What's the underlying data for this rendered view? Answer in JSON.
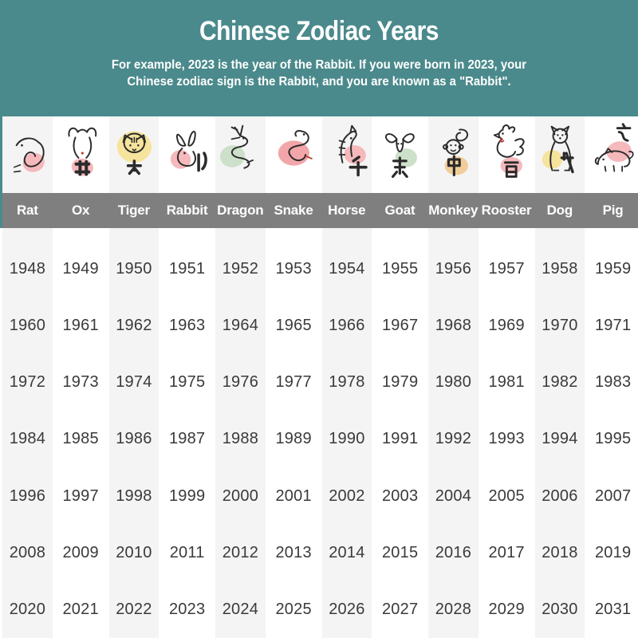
{
  "header": {
    "title": "Chinese Zodiac Years",
    "subtitle_lines": [
      "For example, 2023 is the year of the Rabbit. If you were born in 2023, your",
      "Chinese zodiac sign is the Rabbit, and you are known as a \"Rabbit\"."
    ],
    "colors": {
      "background": "#4b8a8c",
      "text": "#ffffff"
    }
  },
  "zodiac": {
    "name_band_color": "#7f7f7f",
    "name_text_color": "#ffffff",
    "stripe_color": "#f4f4f4",
    "year_text_color": "#3a3a3a",
    "ink_color": "#2b2b2b",
    "columns": [
      {
        "name": "Rat",
        "branch_glyph": "子",
        "icon": "rat-icon",
        "blob_color": "#f5b9bc",
        "years": [
          1948,
          1960,
          1972,
          1984,
          1996,
          2008,
          2020
        ]
      },
      {
        "name": "Ox",
        "branch_glyph": "丑",
        "icon": "ox-icon",
        "blob_color": "#f5b9bc",
        "years": [
          1949,
          1961,
          1973,
          1985,
          1997,
          2009,
          2021
        ]
      },
      {
        "name": "Tiger",
        "branch_glyph": "寅",
        "icon": "tiger-icon",
        "blob_color": "#f6e39c",
        "years": [
          1950,
          1962,
          1974,
          1986,
          1998,
          2010,
          2022
        ]
      },
      {
        "name": "Rabbit",
        "branch_glyph": "卯",
        "icon": "rabbit-icon",
        "blob_color": "#f5b9bc",
        "years": [
          1951,
          1963,
          1975,
          1987,
          1999,
          2011,
          2023
        ]
      },
      {
        "name": "Dragon",
        "branch_glyph": "辰",
        "icon": "dragon-icon",
        "blob_color": "#cde0c9",
        "years": [
          1952,
          1964,
          1976,
          1988,
          2000,
          2012,
          2024
        ]
      },
      {
        "name": "Snake",
        "branch_glyph": "巳",
        "icon": "snake-icon",
        "blob_color": "#f2a6aa",
        "years": [
          1953,
          1965,
          1977,
          1989,
          2001,
          2013,
          2025
        ]
      },
      {
        "name": "Horse",
        "branch_glyph": "午",
        "icon": "horse-icon",
        "blob_color": "#f5b9bc",
        "years": [
          1954,
          1966,
          1978,
          1990,
          2002,
          2014,
          2026
        ]
      },
      {
        "name": "Goat",
        "branch_glyph": "未",
        "icon": "goat-icon",
        "blob_color": "#cde0c9",
        "years": [
          1955,
          1967,
          1979,
          1991,
          2003,
          2015,
          2027
        ]
      },
      {
        "name": "Monkey",
        "branch_glyph": "申",
        "icon": "monkey-icon",
        "blob_color": "#f1cd9a",
        "years": [
          1956,
          1968,
          1980,
          1992,
          2004,
          2016,
          2028
        ]
      },
      {
        "name": "Rooster",
        "branch_glyph": "酉",
        "icon": "rooster-icon",
        "blob_color": "#f5b9bc",
        "years": [
          1957,
          1969,
          1981,
          1993,
          2005,
          2017,
          2029
        ]
      },
      {
        "name": "Dog",
        "branch_glyph": "戌",
        "icon": "dog-icon",
        "blob_color": "#f6e39c",
        "years": [
          1958,
          1970,
          1982,
          1994,
          2006,
          2018,
          2030
        ]
      },
      {
        "name": "Pig",
        "branch_glyph": "亥",
        "icon": "pig-icon",
        "blob_color": "#f5b9bc",
        "years": [
          1959,
          1971,
          1983,
          1995,
          2007,
          2019,
          2031
        ]
      }
    ]
  },
  "chart_data": {
    "type": "table",
    "title": "Chinese Zodiac Years",
    "columns": [
      "Rat",
      "Ox",
      "Tiger",
      "Rabbit",
      "Dragon",
      "Snake",
      "Horse",
      "Goat",
      "Monkey",
      "Rooster",
      "Dog",
      "Pig"
    ],
    "rows": [
      [
        1948,
        1949,
        1950,
        1951,
        1952,
        1953,
        1954,
        1955,
        1956,
        1957,
        1958,
        1959
      ],
      [
        1960,
        1961,
        1962,
        1963,
        1964,
        1965,
        1966,
        1967,
        1968,
        1969,
        1970,
        1971
      ],
      [
        1972,
        1973,
        1974,
        1975,
        1976,
        1977,
        1978,
        1979,
        1980,
        1981,
        1982,
        1983
      ],
      [
        1984,
        1985,
        1986,
        1987,
        1988,
        1989,
        1990,
        1991,
        1992,
        1993,
        1994,
        1995
      ],
      [
        1996,
        1997,
        1998,
        1999,
        2000,
        2001,
        2002,
        2003,
        2004,
        2005,
        2006,
        2007
      ],
      [
        2008,
        2009,
        2010,
        2011,
        2012,
        2013,
        2014,
        2015,
        2016,
        2017,
        2018,
        2019
      ],
      [
        2020,
        2021,
        2022,
        2023,
        2024,
        2025,
        2026,
        2027,
        2028,
        2029,
        2030,
        2031
      ]
    ],
    "layout": {
      "striped_columns": "odd",
      "header_band": true
    }
  }
}
